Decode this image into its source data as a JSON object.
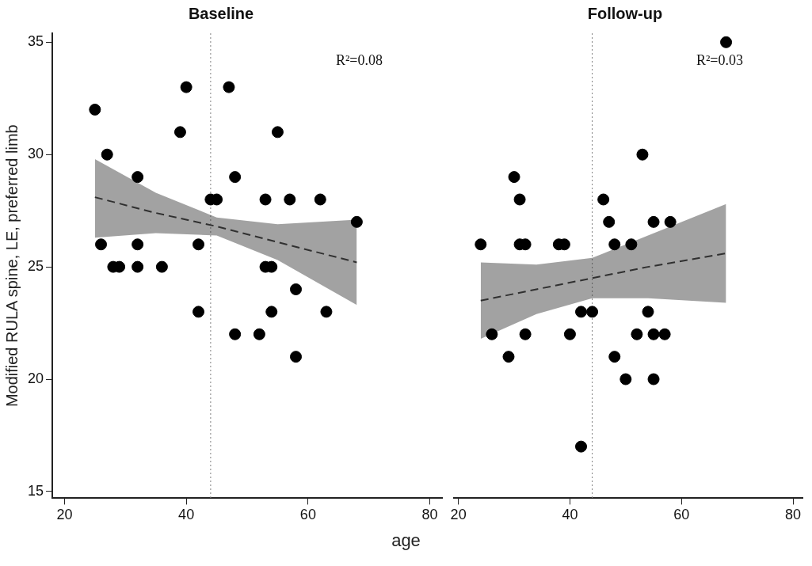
{
  "chart_data": [
    {
      "type": "scatter",
      "title": "Baseline",
      "xlabel": "age",
      "ylabel": "Modified RULA spine, LE, preferred limb",
      "xlim": [
        18,
        82
      ],
      "xticks": [
        20,
        40,
        60,
        80
      ],
      "ylim": [
        14.7,
        35.4
      ],
      "yticks": [
        15,
        20,
        25,
        30,
        35
      ],
      "grid": false,
      "legend": false,
      "marker": "circle",
      "annotations": [
        "R²=0.08"
      ],
      "ref_lines": [
        {
          "axis": "x",
          "value": 44,
          "color": "#808080",
          "line_style": "dotted"
        }
      ],
      "series": [
        {
          "type": "line",
          "color": "#303030",
          "line_style": "dashed",
          "marker": "none",
          "x": [
            25,
            35,
            45,
            55,
            68
          ],
          "values": [
            28.1,
            27.4,
            26.8,
            26.1,
            25.2
          ],
          "lower": [
            26.3,
            26.5,
            26.4,
            25.3,
            23.3
          ],
          "upper": [
            29.8,
            28.3,
            27.2,
            26.9,
            27.1
          ]
        },
        {
          "type": "scatter",
          "color": "#000000",
          "x": [
            25,
            26,
            27,
            28,
            29,
            32,
            32,
            32,
            36,
            39,
            40,
            42,
            42,
            44,
            45,
            47,
            48,
            48,
            52,
            53,
            53,
            54,
            54,
            55,
            57,
            58,
            58,
            62,
            63,
            68
          ],
          "values": [
            32,
            26,
            30,
            25,
            25,
            29,
            26,
            25,
            25,
            31,
            33,
            23,
            26,
            28,
            28,
            33,
            29,
            22,
            22,
            28,
            25,
            25,
            23,
            31,
            28,
            24,
            21,
            28,
            23,
            27
          ]
        }
      ]
    },
    {
      "type": "scatter",
      "title": "Follow-up",
      "xlim": [
        19.2,
        81.7
      ],
      "xticks": [
        20,
        40,
        60,
        80
      ],
      "ylim": [
        14.7,
        35.4
      ],
      "tick_labels": "x",
      "grid": false,
      "legend": false,
      "marker": "circle",
      "annotations": [
        "R²=0.03"
      ],
      "ref_lines": [
        {
          "axis": "x",
          "value": 44,
          "color": "#808080",
          "line_style": "dotted"
        }
      ],
      "series": [
        {
          "type": "line",
          "color": "#303030",
          "line_style": "dashed",
          "marker": "none",
          "x": [
            24,
            34,
            44,
            54,
            68
          ],
          "values": [
            23.5,
            24.0,
            24.5,
            25.0,
            25.6
          ],
          "lower": [
            21.8,
            22.9,
            23.6,
            23.6,
            23.4
          ],
          "upper": [
            25.2,
            25.1,
            25.4,
            26.4,
            27.8
          ]
        },
        {
          "type": "scatter",
          "color": "#000000",
          "x": [
            24,
            26,
            29,
            30,
            31,
            31,
            32,
            32,
            38,
            39,
            40,
            42,
            42,
            44,
            46,
            47,
            48,
            48,
            50,
            51,
            52,
            53,
            54,
            55,
            55,
            55,
            57,
            58,
            68
          ],
          "values": [
            26,
            22,
            21,
            29,
            28,
            26,
            26,
            22,
            26,
            26,
            22,
            23,
            17,
            23,
            28,
            27,
            26,
            21,
            20,
            26,
            22,
            30,
            23,
            27,
            22,
            20,
            22,
            27,
            35
          ]
        }
      ]
    }
  ]
}
